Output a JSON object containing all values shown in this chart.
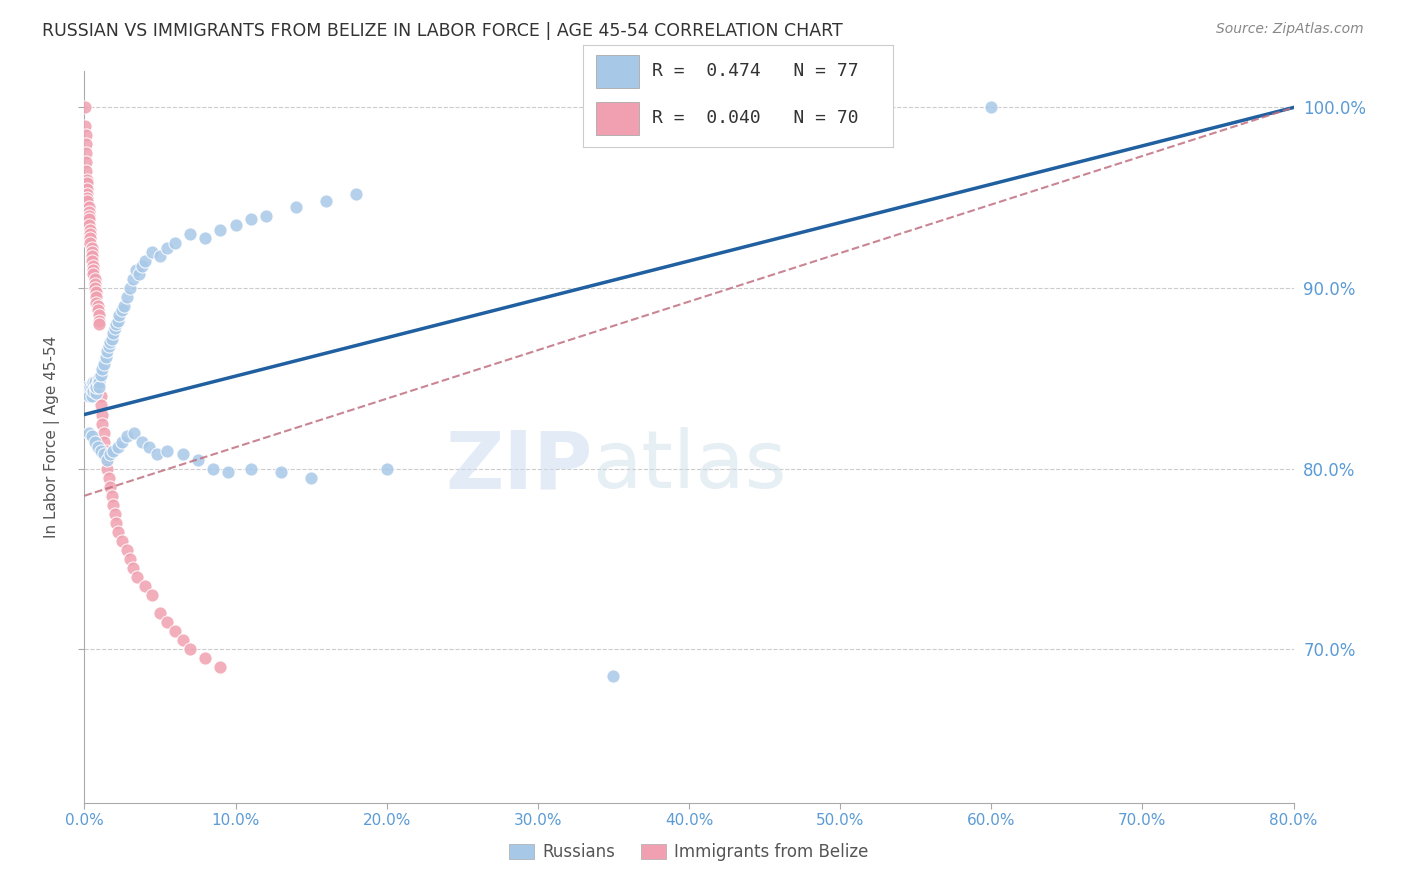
{
  "title": "RUSSIAN VS IMMIGRANTS FROM BELIZE IN LABOR FORCE | AGE 45-54 CORRELATION CHART",
  "source": "Source: ZipAtlas.com",
  "ylabel": "In Labor Force | Age 45-54",
  "R_russian": 0.474,
  "N_russian": 77,
  "R_belize": 0.04,
  "N_belize": 70,
  "watermark_zip": "ZIP",
  "watermark_atlas": "atlas",
  "blue_color": "#a8c8e8",
  "pink_color": "#f0a0b0",
  "trend_blue": "#2060a0",
  "trend_pink": "#c07080",
  "background": "#ffffff",
  "russian_x": [
    0.002,
    0.003,
    0.004,
    0.005,
    0.005,
    0.006,
    0.006,
    0.007,
    0.007,
    0.008,
    0.008,
    0.009,
    0.01,
    0.01,
    0.01,
    0.011,
    0.012,
    0.013,
    0.014,
    0.015,
    0.016,
    0.017,
    0.018,
    0.019,
    0.02,
    0.021,
    0.022,
    0.023,
    0.025,
    0.026,
    0.028,
    0.03,
    0.032,
    0.034,
    0.036,
    0.038,
    0.04,
    0.045,
    0.05,
    0.055,
    0.06,
    0.07,
    0.08,
    0.09,
    0.1,
    0.11,
    0.12,
    0.14,
    0.16,
    0.18,
    0.003,
    0.005,
    0.007,
    0.009,
    0.011,
    0.013,
    0.015,
    0.017,
    0.019,
    0.022,
    0.025,
    0.028,
    0.033,
    0.038,
    0.043,
    0.048,
    0.055,
    0.065,
    0.075,
    0.085,
    0.095,
    0.11,
    0.13,
    0.15,
    0.2,
    0.35,
    0.6
  ],
  "russian_y": [
    0.845,
    0.84,
    0.845,
    0.84,
    0.845,
    0.848,
    0.843,
    0.845,
    0.848,
    0.842,
    0.845,
    0.848,
    0.85,
    0.848,
    0.845,
    0.852,
    0.855,
    0.858,
    0.862,
    0.865,
    0.868,
    0.87,
    0.872,
    0.875,
    0.878,
    0.88,
    0.882,
    0.885,
    0.888,
    0.89,
    0.895,
    0.9,
    0.905,
    0.91,
    0.908,
    0.912,
    0.915,
    0.92,
    0.918,
    0.922,
    0.925,
    0.93,
    0.928,
    0.932,
    0.935,
    0.938,
    0.94,
    0.945,
    0.948,
    0.952,
    0.82,
    0.818,
    0.815,
    0.812,
    0.81,
    0.808,
    0.805,
    0.808,
    0.81,
    0.812,
    0.815,
    0.818,
    0.82,
    0.815,
    0.812,
    0.808,
    0.81,
    0.808,
    0.805,
    0.8,
    0.798,
    0.8,
    0.798,
    0.795,
    0.8,
    0.685,
    1.0
  ],
  "belize_x": [
    0.0005,
    0.0005,
    0.0008,
    0.001,
    0.001,
    0.001,
    0.001,
    0.0015,
    0.0015,
    0.002,
    0.002,
    0.002,
    0.002,
    0.003,
    0.003,
    0.003,
    0.003,
    0.003,
    0.004,
    0.004,
    0.004,
    0.004,
    0.005,
    0.005,
    0.005,
    0.005,
    0.006,
    0.006,
    0.006,
    0.007,
    0.007,
    0.007,
    0.008,
    0.008,
    0.008,
    0.009,
    0.009,
    0.01,
    0.01,
    0.01,
    0.011,
    0.011,
    0.012,
    0.012,
    0.013,
    0.013,
    0.014,
    0.015,
    0.015,
    0.016,
    0.017,
    0.018,
    0.019,
    0.02,
    0.021,
    0.022,
    0.025,
    0.028,
    0.03,
    0.032,
    0.035,
    0.04,
    0.045,
    0.05,
    0.055,
    0.06,
    0.065,
    0.07,
    0.08,
    0.09
  ],
  "belize_y": [
    1.0,
    0.99,
    0.985,
    0.98,
    0.975,
    0.97,
    0.965,
    0.96,
    0.958,
    0.955,
    0.952,
    0.95,
    0.948,
    0.945,
    0.942,
    0.94,
    0.938,
    0.935,
    0.932,
    0.93,
    0.928,
    0.925,
    0.922,
    0.92,
    0.918,
    0.915,
    0.912,
    0.91,
    0.908,
    0.905,
    0.902,
    0.9,
    0.898,
    0.895,
    0.892,
    0.89,
    0.888,
    0.885,
    0.882,
    0.88,
    0.84,
    0.835,
    0.83,
    0.825,
    0.82,
    0.815,
    0.81,
    0.805,
    0.8,
    0.795,
    0.79,
    0.785,
    0.78,
    0.775,
    0.77,
    0.765,
    0.76,
    0.755,
    0.75,
    0.745,
    0.74,
    0.735,
    0.73,
    0.72,
    0.715,
    0.71,
    0.705,
    0.7,
    0.695,
    0.69
  ],
  "xlim": [
    0.0,
    0.8
  ],
  "ylim": [
    0.615,
    1.02
  ],
  "x_ticks": [
    0.0,
    0.1,
    0.2,
    0.3,
    0.4,
    0.5,
    0.6,
    0.7,
    0.8
  ],
  "y_ticks": [
    0.7,
    0.8,
    0.9,
    1.0
  ],
  "trend_russian_x0": 0.0,
  "trend_russian_y0": 0.83,
  "trend_russian_x1": 0.8,
  "trend_russian_y1": 1.0,
  "trend_belize_x0": 0.0,
  "trend_belize_y0": 0.785,
  "trend_belize_x1": 0.8,
  "trend_belize_y1": 1.0
}
